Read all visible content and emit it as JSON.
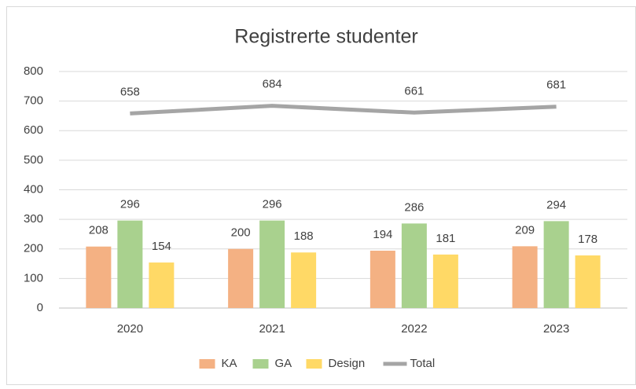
{
  "chart_data": {
    "type": "bar",
    "title": "Registrerte studenter",
    "categories": [
      "2020",
      "2021",
      "2022",
      "2023"
    ],
    "series": [
      {
        "name": "KA",
        "color": "#f4b183",
        "values": [
          208,
          200,
          194,
          209
        ]
      },
      {
        "name": "GA",
        "color": "#a9d18e",
        "values": [
          296,
          296,
          286,
          294
        ]
      },
      {
        "name": "Design",
        "color": "#ffd966",
        "values": [
          154,
          188,
          181,
          178
        ]
      },
      {
        "name": "Total",
        "type": "line",
        "color": "#a5a5a5",
        "values": [
          658,
          684,
          661,
          681
        ]
      }
    ],
    "ylim": [
      0,
      800
    ],
    "yticks": [
      0,
      100,
      200,
      300,
      400,
      500,
      600,
      700,
      800
    ],
    "grid": true,
    "legend": "bottom"
  }
}
